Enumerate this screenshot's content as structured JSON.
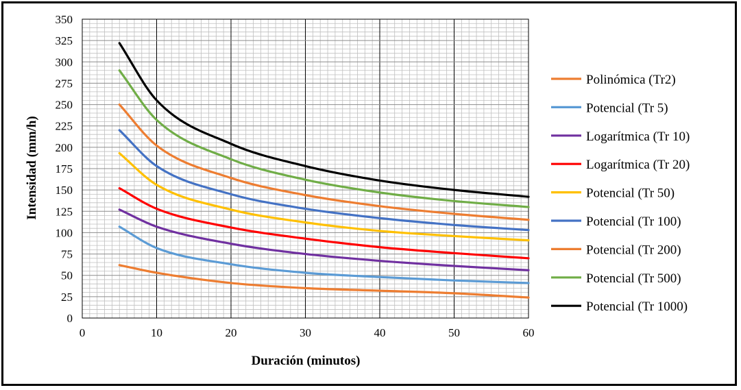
{
  "chart_data": {
    "type": "line",
    "title": "",
    "xlabel": "Duración (minutos)",
    "ylabel": "Intensidad (mm/h)",
    "xlim": [
      0,
      60
    ],
    "ylim": [
      0,
      350
    ],
    "x_ticks": [
      0,
      10,
      20,
      30,
      40,
      50,
      60
    ],
    "y_ticks": [
      0,
      25,
      50,
      75,
      100,
      125,
      150,
      175,
      200,
      225,
      250,
      275,
      300,
      325,
      350
    ],
    "grid": "major and minor",
    "legend_position": "right",
    "x": [
      5,
      10,
      20,
      30,
      40,
      50,
      60
    ],
    "series": [
      {
        "name": "Polinómica (Tr2)",
        "color": "#ED7D31",
        "values": [
          62,
          53,
          41,
          35,
          32,
          29,
          24
        ]
      },
      {
        "name": "Potencial (Tr 5)",
        "color": "#5B9BD5",
        "values": [
          107,
          82,
          63,
          53,
          48,
          44,
          41
        ]
      },
      {
        "name": "Logarítmica (Tr 10)",
        "color": "#7030A0",
        "values": [
          127,
          107,
          87,
          75,
          67,
          61,
          56
        ]
      },
      {
        "name": "Logarítmica (Tr 20)",
        "color": "#FF0000",
        "values": [
          152,
          128,
          106,
          93,
          83,
          76,
          70
        ]
      },
      {
        "name": "Potencial (Tr  50)",
        "color": "#FFC000",
        "values": [
          193,
          156,
          127,
          112,
          102,
          96,
          91
        ]
      },
      {
        "name": "Potencial (Tr 100)",
        "color": "#4472C4",
        "values": [
          220,
          178,
          145,
          128,
          117,
          109,
          103
        ]
      },
      {
        "name": "Potencial (Tr 200)",
        "color": "#ED7D31",
        "values": [
          250,
          202,
          164,
          144,
          131,
          122,
          115
        ]
      },
      {
        "name": "Potencial (Tr 500)",
        "color": "#70AD47",
        "values": [
          290,
          232,
          186,
          162,
          147,
          137,
          130
        ]
      },
      {
        "name": "Potencial (Tr 1000)",
        "color": "#000000",
        "values": [
          322,
          255,
          204,
          178,
          161,
          150,
          142
        ]
      }
    ]
  }
}
